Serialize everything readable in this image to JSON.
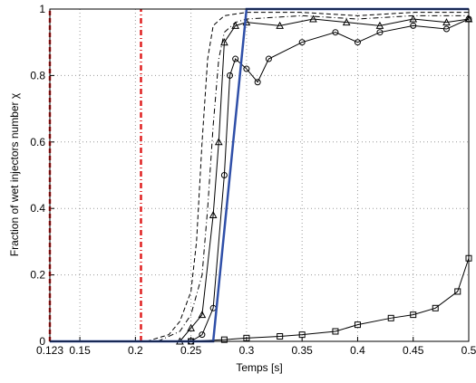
{
  "chart_data": {
    "type": "line",
    "xlabel": "Temps [s]",
    "ylabel": "Fraction of wet injectors number χ",
    "xlim": [
      0.123,
      0.5
    ],
    "ylim": [
      0,
      1
    ],
    "xticks": [
      0.123,
      0.15,
      0.2,
      0.25,
      0.3,
      0.35,
      0.4,
      0.45,
      0.5
    ],
    "yticks": [
      0,
      0.2,
      0.4,
      0.6,
      0.8,
      1
    ],
    "grid": true,
    "series": [
      {
        "color": "#e02020",
        "dash": "dashed",
        "width": 2.5,
        "x": [
          0.123,
          0.123
        ],
        "values": [
          0,
          1
        ]
      },
      {
        "color": "#e02020",
        "dash": "dashdot",
        "width": 2.5,
        "x": [
          0.205,
          0.205
        ],
        "values": [
          0,
          1
        ]
      },
      {
        "color": "#000000",
        "dash": "dashed",
        "width": 1,
        "x": [
          0.21,
          0.23,
          0.24,
          0.25,
          0.255,
          0.26,
          0.265,
          0.27,
          0.28,
          0.3,
          0.35,
          0.4,
          0.45,
          0.5
        ],
        "values": [
          0,
          0.02,
          0.06,
          0.15,
          0.3,
          0.6,
          0.85,
          0.95,
          0.98,
          0.99,
          0.99,
          0.98,
          0.99,
          0.99
        ]
      },
      {
        "color": "#000000",
        "dash": "dashdot",
        "width": 1,
        "x": [
          0.22,
          0.24,
          0.25,
          0.26,
          0.265,
          0.27,
          0.275,
          0.28,
          0.29,
          0.3,
          0.35,
          0.4,
          0.45,
          0.5
        ],
        "values": [
          0,
          0.03,
          0.08,
          0.2,
          0.4,
          0.65,
          0.85,
          0.93,
          0.96,
          0.97,
          0.98,
          0.97,
          0.98,
          0.98
        ]
      },
      {
        "color": "#000000",
        "dash": "solid",
        "width": 1,
        "marker": "triangle",
        "x": [
          0.24,
          0.25,
          0.26,
          0.27,
          0.275,
          0.28,
          0.29,
          0.3,
          0.33,
          0.36,
          0.39,
          0.42,
          0.45,
          0.48,
          0.5
        ],
        "values": [
          0,
          0.04,
          0.08,
          0.38,
          0.6,
          0.9,
          0.95,
          0.96,
          0.95,
          0.97,
          0.96,
          0.95,
          0.97,
          0.96,
          0.97
        ]
      },
      {
        "color": "#000000",
        "dash": "solid",
        "width": 1,
        "marker": "circle",
        "x": [
          0.25,
          0.26,
          0.27,
          0.28,
          0.285,
          0.29,
          0.3,
          0.31,
          0.32,
          0.35,
          0.38,
          0.4,
          0.42,
          0.45,
          0.48,
          0.5
        ],
        "values": [
          0,
          0.02,
          0.1,
          0.5,
          0.8,
          0.85,
          0.82,
          0.78,
          0.85,
          0.9,
          0.93,
          0.9,
          0.93,
          0.95,
          0.94,
          0.97
        ]
      },
      {
        "color": "#000000",
        "dash": "solid",
        "width": 1,
        "marker": "square",
        "x": [
          0.25,
          0.28,
          0.3,
          0.33,
          0.35,
          0.38,
          0.4,
          0.43,
          0.45,
          0.47,
          0.49,
          0.5
        ],
        "values": [
          0,
          0.005,
          0.01,
          0.015,
          0.02,
          0.03,
          0.05,
          0.07,
          0.08,
          0.1,
          0.15,
          0.25
        ]
      },
      {
        "color": "#2f4fa8",
        "dash": "solid",
        "width": 2.5,
        "x": [
          0.123,
          0.27,
          0.3,
          0.5
        ],
        "values": [
          0,
          0,
          1,
          1
        ]
      }
    ]
  }
}
